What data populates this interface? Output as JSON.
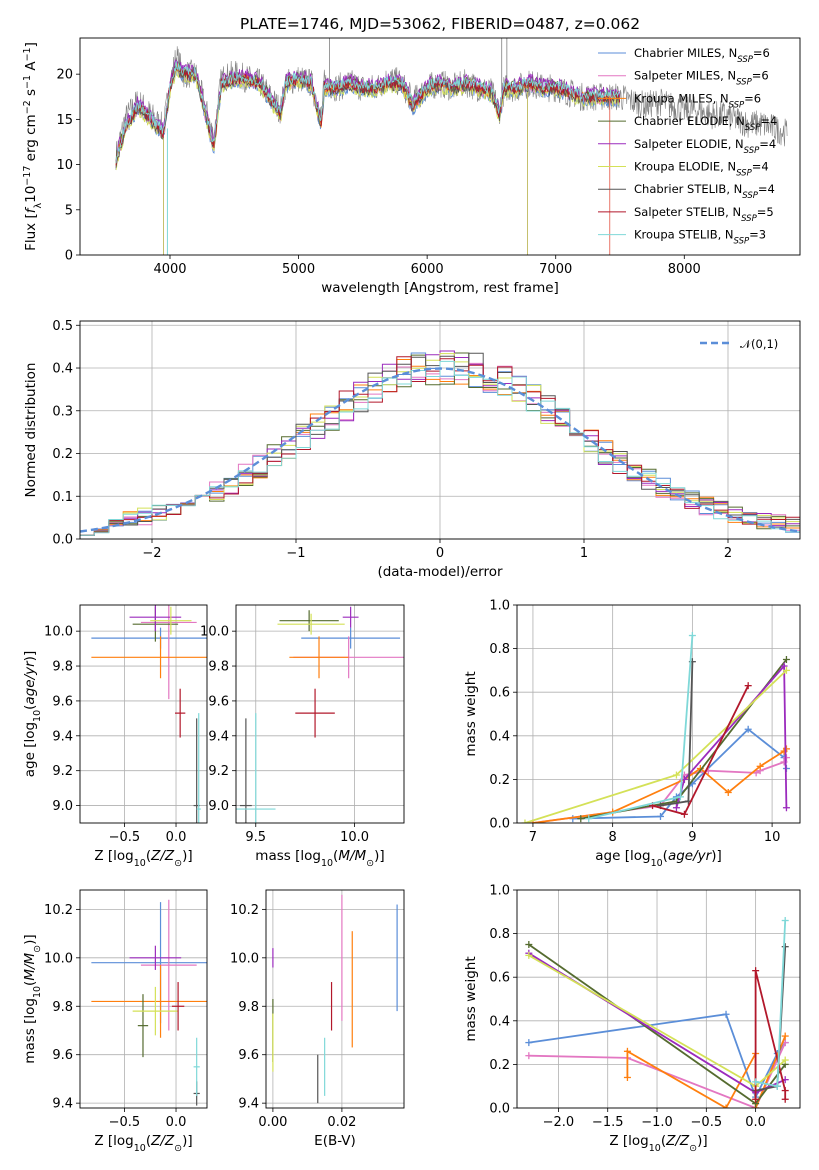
{
  "figure": {
    "title": "PLATE=1746, MJD=53062, FIBERID=0487, z=0.062"
  },
  "colors": {
    "Chabrier MILES": "#5b8ed8",
    "Salpeter MILES": "#e377c2",
    "Kroupa MILES": "#ff7f0e",
    "Chabrier ELODIE": "#556b2f",
    "Salpeter ELODIE": "#9b2bbd",
    "Kroupa ELODIE": "#d4e157",
    "Chabrier STELIB": "#555555",
    "Salpeter STELIB": "#b2182b",
    "Kroupa STELIB": "#7fd8d8",
    "data": "#808080"
  },
  "chart_data": [
    {
      "id": "spectrum",
      "type": "line",
      "xlabel": "wavelength [Angstrom, rest frame]",
      "ylabel": "Flux [f_λ 10^{-17} erg cm^{-2} s^{-1} A^{-1}]",
      "xlim": [
        3300,
        8900
      ],
      "ylim": [
        0,
        24
      ],
      "xticks": [
        4000,
        5000,
        6000,
        7000,
        8000
      ],
      "yticks": [
        0,
        5,
        10,
        15,
        20
      ],
      "grid": false,
      "legend_position": "top-right",
      "legend": [
        {
          "name": "Chabrier MILES",
          "nssp": 6
        },
        {
          "name": "Salpeter MILES",
          "nssp": 6
        },
        {
          "name": "Kroupa MILES",
          "nssp": 6
        },
        {
          "name": "Chabrier ELODIE",
          "nssp": 4
        },
        {
          "name": "Salpeter ELODIE",
          "nssp": 4
        },
        {
          "name": "Kroupa ELODIE",
          "nssp": 4
        },
        {
          "name": "Chabrier STELIB",
          "nssp": 4
        },
        {
          "name": "Salpeter STELIB",
          "nssp": 5
        },
        {
          "name": "Kroupa STELIB",
          "nssp": 3
        }
      ],
      "series": [
        {
          "name": "data",
          "x": [
            3580,
            3650,
            3750,
            3850,
            3950,
            4000,
            4050,
            4100,
            4200,
            4340,
            4400,
            4500,
            4600,
            4700,
            4860,
            4900,
            5000,
            5100,
            5175,
            5200,
            5300,
            5400,
            5500,
            5600,
            5700,
            5800,
            5890,
            6000,
            6100,
            6200,
            6300,
            6400,
            6500,
            6563,
            6600,
            6700,
            6800,
            6900,
            7000,
            7100,
            7200,
            7300,
            7400,
            7500,
            7600,
            7700,
            7800,
            7900,
            8000,
            8100,
            8200,
            8300,
            8400,
            8500,
            8600,
            8700,
            8800
          ],
          "y": [
            11,
            15,
            17,
            15.5,
            14,
            19,
            22,
            20,
            20,
            13,
            19.5,
            20,
            19.5,
            19,
            16,
            19,
            19.5,
            19,
            15,
            19,
            18.5,
            19,
            18.5,
            18.5,
            19.5,
            19,
            17,
            18.5,
            19,
            18.5,
            19,
            18.5,
            18,
            16,
            18.5,
            18.5,
            19,
            18.5,
            18.5,
            18,
            17.5,
            17.5,
            17.5,
            17.5,
            17,
            16.5,
            17,
            16.5,
            16,
            16,
            15.5,
            15.5,
            15,
            14.5,
            14.5,
            14,
            13.5
          ]
        },
        {
          "name": "model",
          "x": [
            3580,
            3650,
            3750,
            3850,
            3950,
            4000,
            4050,
            4100,
            4200,
            4340,
            4400,
            4500,
            4600,
            4700,
            4860,
            4900,
            5000,
            5100,
            5175,
            5200,
            5300,
            5400,
            5500,
            5600,
            5700,
            5800,
            5890,
            6000,
            6100,
            6200,
            6300,
            6400,
            6500,
            6563,
            6600,
            6700,
            6800,
            6900,
            7000,
            7100,
            7200,
            7300,
            7400,
            7500
          ],
          "y": [
            10.5,
            14,
            16.5,
            15,
            13.5,
            18.5,
            21,
            20,
            20,
            12,
            19,
            19.5,
            19.5,
            19,
            15.5,
            19,
            19.5,
            19,
            14.5,
            18.5,
            18.5,
            19,
            18.5,
            18.5,
            19,
            19,
            16.5,
            18.5,
            19,
            18.5,
            19,
            18.5,
            18,
            15.5,
            18.5,
            18.5,
            19,
            18.5,
            18.5,
            18,
            17.5,
            17.5,
            17.5,
            17.5
          ]
        }
      ]
    },
    {
      "id": "residuals",
      "type": "histogram",
      "xlabel": "(data-model)/error",
      "ylabel": "Normed distribution",
      "xlim": [
        -2.5,
        2.5
      ],
      "ylim": [
        0,
        0.51
      ],
      "xticks": [
        -2,
        -1,
        0,
        1,
        2
      ],
      "yticks": [
        0.0,
        0.1,
        0.2,
        0.3,
        0.4,
        0.5
      ],
      "grid": true,
      "legend": [
        "𝒩(0,1)"
      ],
      "bin_width": 0.1,
      "bins_start": -2.5,
      "base_values": [
        0.028,
        0.032,
        0.038,
        0.046,
        0.052,
        0.06,
        0.07,
        0.082,
        0.096,
        0.112,
        0.13,
        0.149,
        0.17,
        0.192,
        0.215,
        0.24,
        0.264,
        0.289,
        0.312,
        0.335,
        0.355,
        0.372,
        0.386,
        0.396,
        0.402,
        0.404,
        0.401,
        0.394,
        0.382,
        0.366,
        0.347,
        0.325,
        0.302,
        0.277,
        0.252,
        0.227,
        0.203,
        0.18,
        0.158,
        0.138,
        0.12,
        0.104,
        0.09,
        0.078,
        0.067,
        0.058,
        0.05,
        0.043,
        0.037,
        0.032
      ]
    },
    {
      "id": "age_vs_Z",
      "type": "errorbar",
      "xlabel": "Z [log10(Z/Z⊙)]",
      "ylabel": "age [log10(age/yr)]",
      "xlim": [
        -0.93,
        0.3
      ],
      "ylim": [
        8.9,
        10.15
      ],
      "xticks": [
        -0.5,
        0.0
      ],
      "xticklabels": [
        "−0.5",
        "0.0"
      ],
      "yticks": [
        9.0,
        9.2,
        9.4,
        9.6,
        9.8,
        10.0
      ],
      "grid": true,
      "points": [
        {
          "series": "Chabrier MILES",
          "x": -0.15,
          "xerr": 0.67,
          "y": 9.96,
          "yerr": 0.06
        },
        {
          "series": "Salpeter MILES",
          "x": -0.07,
          "xerr": 0.27,
          "y": 10.05,
          "yerr": 0.44
        },
        {
          "series": "Kroupa MILES",
          "x": -0.15,
          "xerr": 0.67,
          "y": 9.85,
          "yerr": 0.12
        },
        {
          "series": "Chabrier ELODIE",
          "x": -0.2,
          "xerr": 0.22,
          "y": 10.04,
          "yerr": 0.1
        },
        {
          "series": "Salpeter ELODIE",
          "x": -0.2,
          "xerr": 0.25,
          "y": 10.08,
          "yerr": 0.08
        },
        {
          "series": "Kroupa ELODIE",
          "x": -0.05,
          "xerr": 0.2,
          "y": 10.06,
          "yerr": 0.08
        },
        {
          "series": "Chabrier STELIB",
          "x": 0.2,
          "xerr": 0.03,
          "y": 9.0,
          "yerr": 0.5
        },
        {
          "series": "Salpeter STELIB",
          "x": 0.04,
          "xerr": 0.05,
          "y": 9.53,
          "yerr": 0.14
        },
        {
          "series": "Kroupa STELIB",
          "x": 0.22,
          "xerr": 0.02,
          "y": 8.98,
          "yerr": 0.55
        }
      ]
    },
    {
      "id": "age_vs_mass",
      "type": "errorbar",
      "xlabel": "mass [log10(M/M⊙)]",
      "ylabel": "",
      "xlim": [
        9.4,
        10.25
      ],
      "ylim": [
        8.9,
        10.15
      ],
      "xticks": [
        9.5,
        10.0
      ],
      "yticks": [
        9.0,
        9.2,
        9.4,
        9.6,
        9.8,
        10.0
      ],
      "grid": true,
      "points": [
        {
          "series": "Chabrier MILES",
          "x": 9.98,
          "xerr": 0.25,
          "y": 9.96,
          "yerr": 0.06
        },
        {
          "series": "Salpeter MILES",
          "x": 9.97,
          "xerr": 0.28,
          "y": 9.85,
          "yerr": 0.12
        },
        {
          "series": "Kroupa MILES",
          "x": 9.82,
          "xerr": 0.15,
          "y": 9.85,
          "yerr": 0.12
        },
        {
          "series": "Chabrier ELODIE",
          "x": 9.77,
          "xerr": 0.15,
          "y": 10.06,
          "yerr": 0.06
        },
        {
          "series": "Salpeter ELODIE",
          "x": 9.98,
          "xerr": 0.04,
          "y": 10.08,
          "yerr": 0.06
        },
        {
          "series": "Kroupa ELODIE",
          "x": 9.78,
          "xerr": 0.17,
          "y": 10.04,
          "yerr": 0.06
        },
        {
          "series": "Chabrier STELIB",
          "x": 9.45,
          "xerr": 0.03,
          "y": 9.0,
          "yerr": 0.5
        },
        {
          "series": "Salpeter STELIB",
          "x": 9.8,
          "xerr": 0.1,
          "y": 9.53,
          "yerr": 0.14
        },
        {
          "series": "Kroupa STELIB",
          "x": 9.5,
          "xerr": 0.1,
          "y": 8.98,
          "yerr": 0.55
        }
      ]
    },
    {
      "id": "weight_vs_age",
      "type": "line",
      "xlabel": "age [log10(age/yr)]",
      "ylabel": "mass weight",
      "xlim": [
        6.8,
        10.35
      ],
      "ylim": [
        0,
        1.0
      ],
      "xticks": [
        7,
        8,
        9,
        10
      ],
      "yticks": [
        0.0,
        0.2,
        0.4,
        0.6,
        0.8,
        1.0
      ],
      "grid": true,
      "series": [
        {
          "name": "Chabrier MILES",
          "x": [
            7.5,
            8.6,
            8.8,
            9.0,
            9.7,
            10.15,
            10.18
          ],
          "y": [
            0.02,
            0.03,
            0.12,
            0.18,
            0.43,
            0.3,
            0.25
          ]
        },
        {
          "name": "Salpeter MILES",
          "x": [
            7.0,
            8.6,
            8.9,
            9.2,
            9.8,
            9.85,
            10.15,
            10.18
          ],
          "y": [
            0.0,
            0.08,
            0.22,
            0.24,
            0.23,
            0.24,
            0.28,
            0.3
          ]
        },
        {
          "name": "Kroupa MILES",
          "x": [
            7.0,
            8.0,
            8.9,
            9.1,
            9.45,
            9.85,
            10.15,
            10.18
          ],
          "y": [
            0.0,
            0.05,
            0.2,
            0.25,
            0.14,
            0.26,
            0.33,
            0.34
          ]
        },
        {
          "name": "Chabrier ELODIE",
          "x": [
            7.6,
            8.8,
            10.18
          ],
          "y": [
            0.02,
            0.1,
            0.75
          ]
        },
        {
          "name": "Salpeter ELODIE",
          "x": [
            8.8,
            8.9,
            10.15,
            10.18
          ],
          "y": [
            0.07,
            0.2,
            0.72,
            0.07
          ]
        },
        {
          "name": "Kroupa ELODIE",
          "x": [
            6.9,
            8.8,
            10.18
          ],
          "y": [
            0.0,
            0.22,
            0.7
          ]
        },
        {
          "name": "Chabrier STELIB",
          "x": [
            8.6,
            8.95,
            9.0
          ],
          "y": [
            0.08,
            0.1,
            0.74
          ]
        },
        {
          "name": "Salpeter STELIB",
          "x": [
            8.5,
            8.9,
            9.7
          ],
          "y": [
            0.08,
            0.04,
            0.63
          ]
        },
        {
          "name": "Kroupa STELIB",
          "x": [
            7.7,
            8.85,
            9.0
          ],
          "y": [
            0.02,
            0.12,
            0.86
          ]
        }
      ]
    },
    {
      "id": "mass_vs_Z",
      "type": "errorbar",
      "xlabel": "Z [log10(Z/Z⊙)]",
      "ylabel": "mass [log10(M/M⊙)]",
      "xlim": [
        -0.93,
        0.3
      ],
      "ylim": [
        9.38,
        10.28
      ],
      "xticks": [
        -0.5,
        0.0
      ],
      "xticklabels": [
        "−0.5",
        "0.0"
      ],
      "yticks": [
        9.4,
        9.6,
        9.8,
        10.0,
        10.2
      ],
      "grid": true,
      "points": [
        {
          "series": "Chabrier MILES",
          "x": -0.15,
          "xerr": 0.67,
          "y": 9.98,
          "yerr": 0.25
        },
        {
          "series": "Salpeter MILES",
          "x": -0.07,
          "xerr": 0.27,
          "y": 9.97,
          "yerr": 0.27
        },
        {
          "series": "Kroupa MILES",
          "x": -0.15,
          "xerr": 0.67,
          "y": 9.82,
          "yerr": 0.15
        },
        {
          "series": "Chabrier ELODIE",
          "x": -0.32,
          "xerr": 0.05,
          "y": 9.72,
          "yerr": 0.13
        },
        {
          "series": "Salpeter ELODIE",
          "x": -0.2,
          "xerr": 0.25,
          "y": 10.0,
          "yerr": 0.05
        },
        {
          "series": "Kroupa ELODIE",
          "x": -0.2,
          "xerr": 0.22,
          "y": 9.78,
          "yerr": 0.1
        },
        {
          "series": "Chabrier STELIB",
          "x": 0.2,
          "xerr": 0.03,
          "y": 9.44,
          "yerr": 0.05
        },
        {
          "series": "Salpeter STELIB",
          "x": 0.02,
          "xerr": 0.06,
          "y": 9.8,
          "yerr": 0.1
        },
        {
          "series": "Kroupa STELIB",
          "x": 0.2,
          "xerr": 0.03,
          "y": 9.55,
          "yerr": 0.12
        }
      ]
    },
    {
      "id": "mass_vs_EBV",
      "type": "errorbar",
      "xlabel": "E(B-V)",
      "ylabel": "",
      "xlim": [
        -0.002,
        0.038
      ],
      "ylim": [
        9.38,
        10.28
      ],
      "xticks": [
        0.0,
        0.02
      ],
      "xticklabels": [
        "0.00",
        "0.02"
      ],
      "yticks": [
        9.4,
        9.6,
        9.8,
        10.0,
        10.2
      ],
      "grid": true,
      "points": [
        {
          "series": "Chabrier MILES",
          "x": 0.036,
          "y": 10.0,
          "yerr": 0.22
        },
        {
          "series": "Salpeter MILES",
          "x": 0.02,
          "y": 10.0,
          "yerr": 0.26
        },
        {
          "series": "Kroupa MILES",
          "x": 0.023,
          "y": 9.87,
          "yerr": 0.24
        },
        {
          "series": "Chabrier ELODIE",
          "x": 0.0,
          "y": 9.7,
          "yerr": 0.13
        },
        {
          "series": "Salpeter ELODIE",
          "x": 0.0,
          "y": 10.0,
          "yerr": 0.04
        },
        {
          "series": "Kroupa ELODIE",
          "x": 0.0,
          "y": 9.65,
          "yerr": 0.12
        },
        {
          "series": "Chabrier STELIB",
          "x": 0.013,
          "y": 9.5,
          "yerr": 0.1
        },
        {
          "series": "Salpeter STELIB",
          "x": 0.017,
          "y": 9.8,
          "yerr": 0.1
        },
        {
          "series": "Kroupa STELIB",
          "x": 0.015,
          "y": 9.55,
          "yerr": 0.12
        }
      ]
    },
    {
      "id": "weight_vs_Z",
      "type": "line",
      "xlabel": "Z [log10(Z/Z⊙)]",
      "ylabel": "mass weight",
      "xlim": [
        -2.42,
        0.45
      ],
      "ylim": [
        0,
        1.0
      ],
      "xticks": [
        -2.0,
        -1.5,
        -1.0,
        -0.5,
        0.0
      ],
      "xticklabels": [
        "−2.0",
        "−1.5",
        "−1.0",
        "−0.5",
        "0.0"
      ],
      "yticks": [
        0.0,
        0.2,
        0.4,
        0.6,
        0.8,
        1.0
      ],
      "grid": true,
      "series": [
        {
          "name": "Chabrier MILES",
          "x": [
            -2.3,
            -0.3,
            0.0,
            0.22,
            0.3
          ],
          "y": [
            0.3,
            0.43,
            0.05,
            0.25,
            0.3
          ]
        },
        {
          "name": "Salpeter MILES",
          "x": [
            -2.3,
            -1.3,
            0.0,
            0.3
          ],
          "y": [
            0.24,
            0.23,
            0.0,
            0.3
          ]
        },
        {
          "name": "Kroupa MILES",
          "x": [
            -1.3,
            -1.3,
            -0.3,
            0.0,
            0.0,
            0.3
          ],
          "y": [
            0.14,
            0.26,
            0.0,
            0.25,
            0.0,
            0.33
          ]
        },
        {
          "name": "Chabrier ELODIE",
          "x": [
            -2.3,
            0.0,
            0.3
          ],
          "y": [
            0.75,
            0.02,
            0.2
          ]
        },
        {
          "name": "Salpeter ELODIE",
          "x": [
            -2.3,
            0.0,
            0.3
          ],
          "y": [
            0.71,
            0.07,
            0.13
          ]
        },
        {
          "name": "Kroupa ELODIE",
          "x": [
            -2.3,
            0.0,
            0.3
          ],
          "y": [
            0.7,
            0.1,
            0.22
          ]
        },
        {
          "name": "Chabrier STELIB",
          "x": [
            0.0,
            0.22,
            0.3
          ],
          "y": [
            0.08,
            0.1,
            0.74
          ]
        },
        {
          "name": "Salpeter STELIB",
          "x": [
            0.0,
            0.0,
            0.3,
            0.3
          ],
          "y": [
            0.04,
            0.63,
            0.08,
            0.04
          ]
        },
        {
          "name": "Kroupa STELIB",
          "x": [
            0.0,
            0.22,
            0.3
          ],
          "y": [
            0.12,
            0.1,
            0.86
          ]
        }
      ]
    }
  ]
}
